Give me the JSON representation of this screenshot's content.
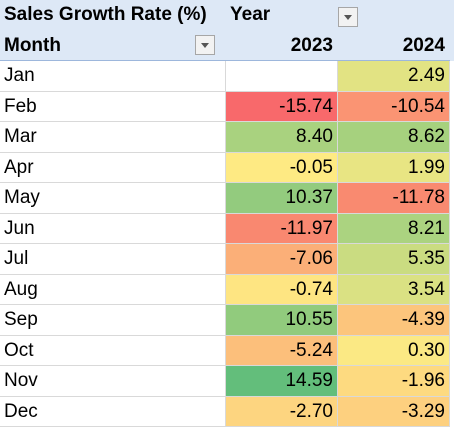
{
  "pivot": {
    "value_title": "Sales Growth Rate (%)",
    "column_field": "Year",
    "row_field": "Month",
    "years": [
      "2023",
      "2024"
    ],
    "rows": [
      {
        "month": "Jan",
        "v2023": "",
        "v2024": "2.49",
        "c2023": "#ffffff",
        "c2024": "#e2e383"
      },
      {
        "month": "Feb",
        "v2023": "-15.74",
        "v2024": "-10.54",
        "c2023": "#f8696b",
        "c2024": "#fa9473"
      },
      {
        "month": "Mar",
        "v2023": "8.40",
        "v2024": "8.62",
        "c2023": "#a9d27f",
        "c2024": "#a6d17e"
      },
      {
        "month": "Apr",
        "v2023": "-0.05",
        "v2024": "1.99",
        "c2023": "#feea83",
        "c2024": "#e8e583"
      },
      {
        "month": "May",
        "v2023": "10.37",
        "v2024": "-11.78",
        "c2023": "#93cb7e",
        "c2024": "#f98a70"
      },
      {
        "month": "Jun",
        "v2023": "-11.97",
        "v2024": "8.21",
        "c2023": "#f98870",
        "c2024": "#abd380"
      },
      {
        "month": "Jul",
        "v2023": "-7.06",
        "v2024": "5.35",
        "c2023": "#fbaf78",
        "c2024": "#cadc81"
      },
      {
        "month": "Aug",
        "v2023": "-0.74",
        "v2024": "3.54",
        "c2023": "#fee582",
        "c2024": "#dae183"
      },
      {
        "month": "Sep",
        "v2023": "10.55",
        "v2024": "-4.39",
        "c2023": "#91cb7d",
        "c2024": "#fcc57c"
      },
      {
        "month": "Oct",
        "v2023": "-5.24",
        "v2024": "0.30",
        "c2023": "#fcbf7b",
        "c2024": "#fbe984"
      },
      {
        "month": "Nov",
        "v2023": "14.59",
        "v2024": "-1.96",
        "c2023": "#63be7b",
        "c2024": "#fdda80"
      },
      {
        "month": "Dec",
        "v2023": "-2.70",
        "v2024": "-3.29",
        "c2023": "#fdd580",
        "c2024": "#fdd07f"
      }
    ]
  }
}
